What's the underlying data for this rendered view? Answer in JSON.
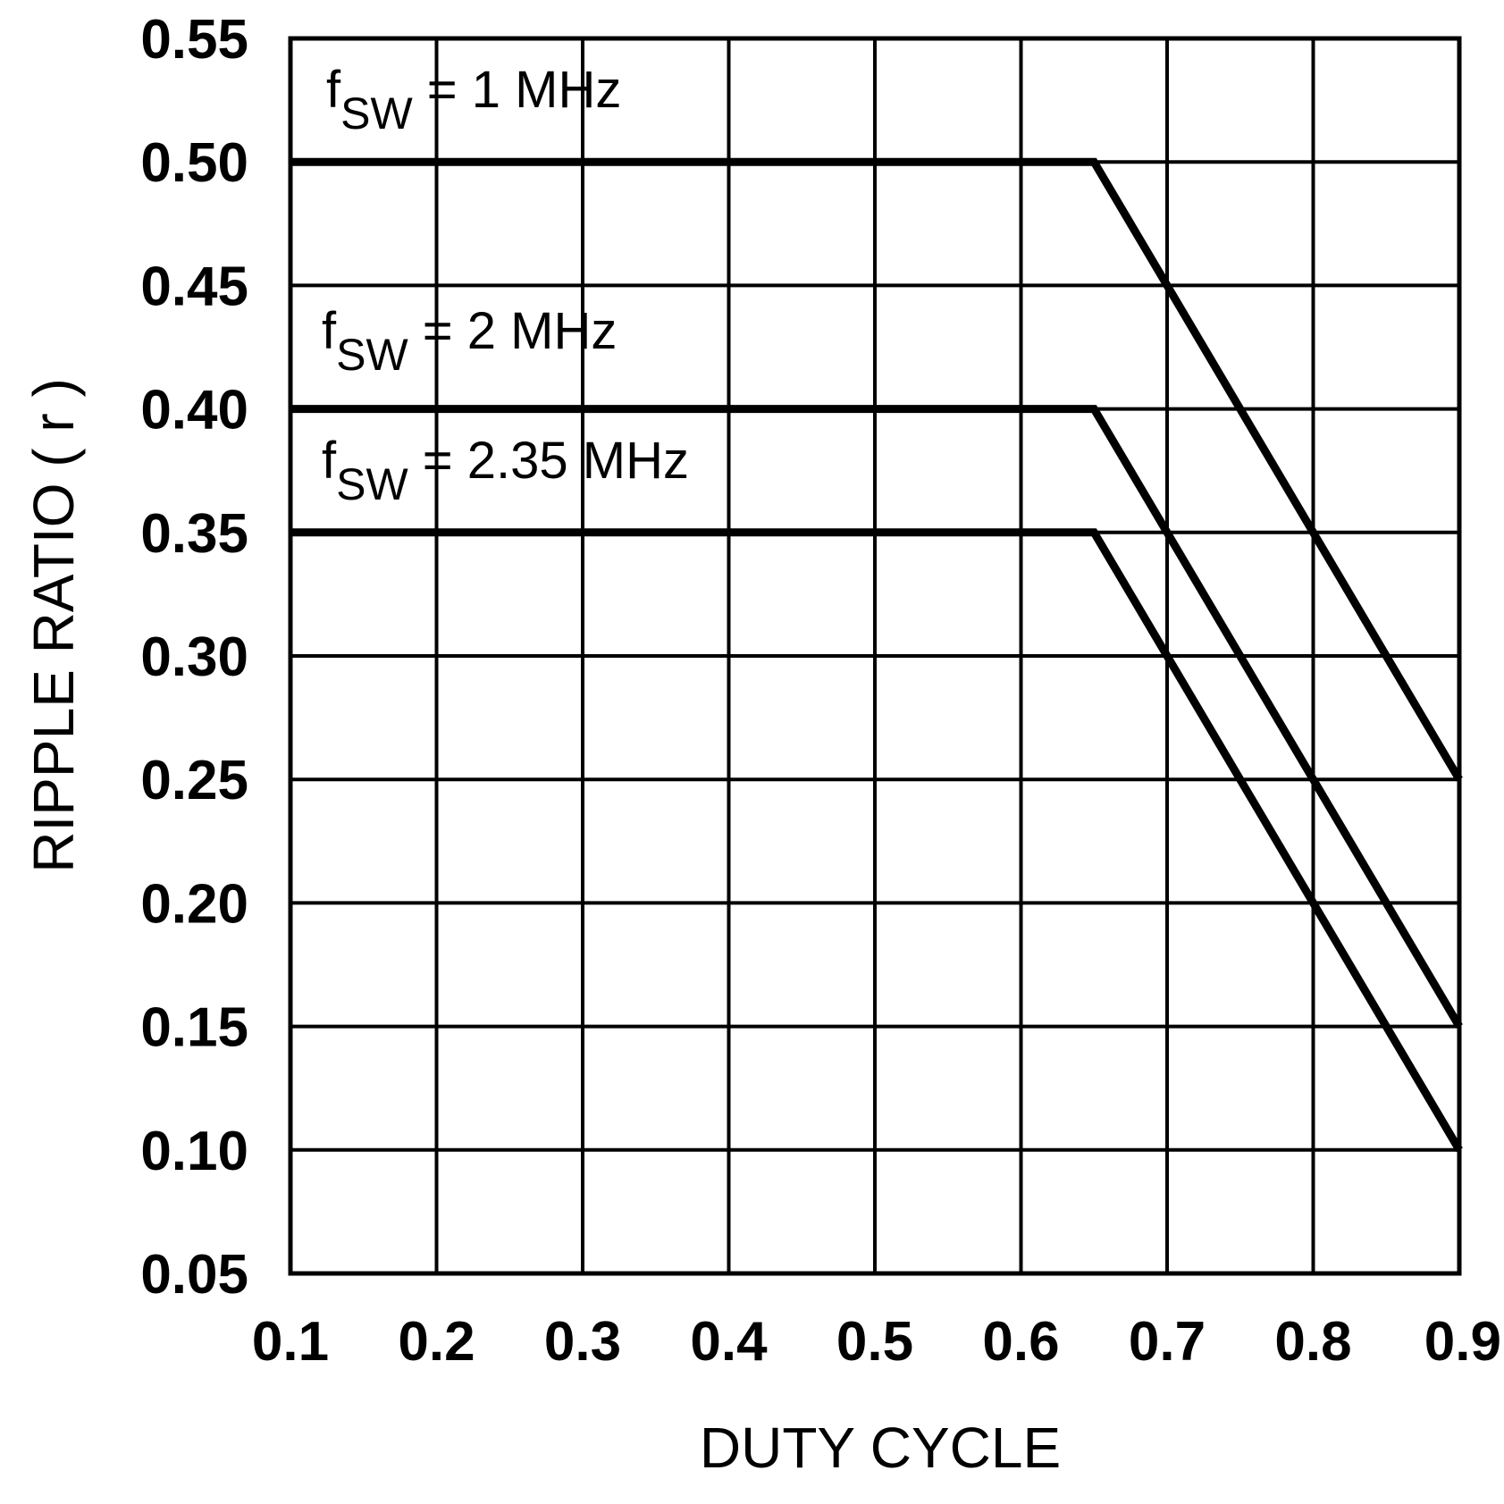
{
  "chart_data": {
    "type": "line",
    "xlabel": "DUTY CYCLE",
    "ylabel": "RIPPLE RATIO ( r )",
    "xlim": [
      0.1,
      0.9
    ],
    "ylim": [
      0.05,
      0.55
    ],
    "x_ticks": [
      "0.1",
      "0.2",
      "0.3",
      "0.4",
      "0.5",
      "0.6",
      "0.7",
      "0.8",
      "0.9"
    ],
    "y_ticks": [
      "0.05",
      "0.10",
      "0.15",
      "0.20",
      "0.25",
      "0.30",
      "0.35",
      "0.40",
      "0.45",
      "0.50",
      "0.55"
    ],
    "grid": true,
    "line_color": "#000000",
    "series": [
      {
        "x": [
          0.1,
          0.65,
          0.9
        ],
        "y": [
          0.5,
          0.5,
          0.25
        ]
      },
      {
        "x": [
          0.1,
          0.65,
          0.9
        ],
        "y": [
          0.4,
          0.4,
          0.15
        ]
      },
      {
        "x": [
          0.1,
          0.65,
          0.9
        ],
        "y": [
          0.35,
          0.35,
          0.1
        ]
      }
    ],
    "annotations": [
      {
        "main": "f",
        "sub": "SW",
        "rest": " = 1 MHz"
      },
      {
        "main": "f",
        "sub": "SW",
        "rest": " = 2 MHz"
      },
      {
        "main": "f",
        "sub": "SW",
        "rest": " = 2.35 MHz"
      }
    ]
  }
}
